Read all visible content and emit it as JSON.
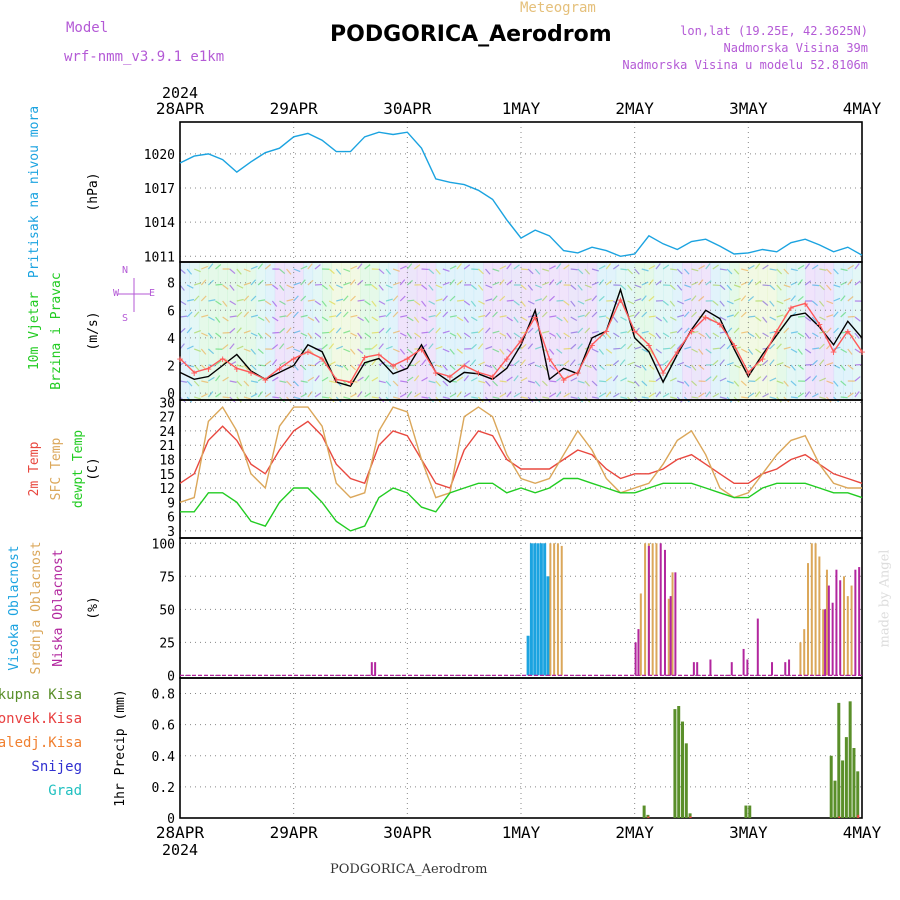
{
  "header": {
    "model_label": "Model",
    "model_name": "wrf-nmm_v3.9.1  e1km",
    "product": "Meteogram",
    "station": "PODGORICA_Aerodrom",
    "lonlat": "lon,lat (19.25E, 42.3625N)",
    "elevation": "Nadmorska Visina 39m",
    "model_elevation": "Nadmorska Visina u modelu 52.8106m",
    "footer_station": "PODGORICA_Aerodrom",
    "credit": "made by Angel"
  },
  "colors": {
    "pressure": "#1ba3e0",
    "t2m": "#e8483f",
    "sfc": "#dba75a",
    "dewpoint": "#22cc22",
    "windspeed": "#000000",
    "gust": "#ff5a5a",
    "high_cloud": "#1ba3e0",
    "mid_cloud": "#dba75a",
    "low_cloud": "#b2269e",
    "total_precip": "#5a8f2a",
    "convective": "#e84040",
    "freezing": "#f08030",
    "snow": "#3030d0",
    "hail": "#20c0c0",
    "model_text": "#b45ad6",
    "title_text": "#000000",
    "meteogram_text": "#e5c07b"
  },
  "chart_data": {
    "type": "line",
    "year_label": "2024",
    "x_labels": [
      "28APR",
      "29APR",
      "30APR",
      "1MAY",
      "2MAY",
      "3MAY",
      "4MAY"
    ],
    "x_range_hours": [
      0,
      144
    ],
    "panels": [
      {
        "id": "pressure",
        "labels": [
          "Pritisak na nivou mora"
        ],
        "unit": "(hPa)",
        "ylim": [
          1010.5,
          1022.8
        ],
        "yticks": [
          1011,
          1014,
          1017,
          1020
        ],
        "series": [
          {
            "key": "pressure",
            "x": [
              0,
              3,
              6,
              9,
              12,
              15,
              18,
              21,
              24,
              27,
              30,
              33,
              36,
              39,
              42,
              45,
              48,
              51,
              54,
              57,
              60,
              63,
              66,
              69,
              72,
              75,
              78,
              81,
              84,
              87,
              90,
              93,
              96,
              99,
              102,
              105,
              108,
              111,
              114,
              117,
              120,
              123,
              126,
              129,
              132,
              135,
              138,
              141,
              144
            ],
            "y": [
              1019.2,
              1019.8,
              1020.0,
              1019.5,
              1018.4,
              1019.3,
              1020.1,
              1020.5,
              1021.5,
              1021.8,
              1021.2,
              1020.2,
              1020.2,
              1021.5,
              1021.9,
              1021.7,
              1021.9,
              1020.5,
              1017.8,
              1017.5,
              1017.3,
              1016.8,
              1016.0,
              1014.2,
              1012.6,
              1013.3,
              1012.8,
              1011.5,
              1011.3,
              1011.8,
              1011.5,
              1011.0,
              1011.2,
              1012.8,
              1012.1,
              1011.6,
              1012.3,
              1012.5,
              1011.9,
              1011.2,
              1011.3,
              1011.6,
              1011.4,
              1012.2,
              1012.5,
              1012.0,
              1011.4,
              1011.8,
              1011.1
            ]
          }
        ]
      },
      {
        "id": "wind",
        "labels": [
          "10m Vjetar",
          "Brzina i Pravac"
        ],
        "unit": "(m/s)",
        "compass": [
          "N",
          "W",
          "E",
          "S"
        ],
        "ylim": [
          -0.5,
          9.5
        ],
        "yticks": [
          0,
          2,
          4,
          6,
          8
        ],
        "series": [
          {
            "key": "windspeed",
            "x": [
              0,
              3,
              6,
              9,
              12,
              15,
              18,
              21,
              24,
              27,
              30,
              33,
              36,
              39,
              42,
              45,
              48,
              51,
              54,
              57,
              60,
              63,
              66,
              69,
              72,
              75,
              78,
              81,
              84,
              87,
              90,
              93,
              96,
              99,
              102,
              105,
              108,
              111,
              114,
              117,
              120,
              123,
              126,
              129,
              132,
              135,
              138,
              141,
              144
            ],
            "y": [
              1.5,
              1.0,
              1.2,
              2.0,
              2.8,
              1.6,
              1.0,
              1.5,
              2.0,
              3.5,
              3.0,
              0.8,
              0.5,
              2.2,
              2.5,
              1.4,
              1.8,
              3.5,
              1.5,
              0.8,
              1.5,
              1.4,
              1.0,
              1.8,
              3.5,
              6.0,
              1.0,
              1.8,
              1.4,
              4.0,
              4.5,
              7.5,
              4.0,
              3.0,
              0.8,
              2.8,
              4.6,
              6.0,
              5.4,
              3.2,
              1.2,
              2.8,
              4.2,
              5.6,
              5.8,
              4.8,
              3.5,
              5.2,
              4.0
            ]
          },
          {
            "key": "gust",
            "x": [
              0,
              3,
              6,
              9,
              12,
              15,
              18,
              21,
              24,
              27,
              30,
              33,
              36,
              39,
              42,
              45,
              48,
              51,
              54,
              57,
              60,
              63,
              66,
              69,
              72,
              75,
              78,
              81,
              84,
              87,
              90,
              93,
              96,
              99,
              102,
              105,
              108,
              111,
              114,
              117,
              120,
              123,
              126,
              129,
              132,
              135,
              138,
              141,
              144
            ],
            "y": [
              2.5,
              1.5,
              1.8,
              2.5,
              1.8,
              1.5,
              1.0,
              1.8,
              2.5,
              3.0,
              2.5,
              1.0,
              0.8,
              2.6,
              2.8,
              2.0,
              2.5,
              3.2,
              1.5,
              1.2,
              2.0,
              1.5,
              1.2,
              2.5,
              3.8,
              5.5,
              2.5,
              1.0,
              1.5,
              3.5,
              4.5,
              6.8,
              4.5,
              3.5,
              1.5,
              3.0,
              4.5,
              5.5,
              5.0,
              3.5,
              1.5,
              2.5,
              4.5,
              6.2,
              6.5,
              5.0,
              3.0,
              4.5,
              3.0
            ]
          }
        ]
      },
      {
        "id": "temperature",
        "labels": [
          "2m Temp",
          "SFC Temp",
          "dewpt Temp"
        ],
        "unit": "(C)",
        "ylim": [
          1.5,
          30.5
        ],
        "yticks": [
          3,
          6,
          9,
          12,
          15,
          18,
          21,
          24,
          27,
          30
        ],
        "series": [
          {
            "key": "t2m",
            "x": [
              0,
              3,
              6,
              9,
              12,
              15,
              18,
              21,
              24,
              27,
              30,
              33,
              36,
              39,
              42,
              45,
              48,
              51,
              54,
              57,
              60,
              63,
              66,
              69,
              72,
              75,
              78,
              81,
              84,
              87,
              90,
              93,
              96,
              99,
              102,
              105,
              108,
              111,
              114,
              117,
              120,
              123,
              126,
              129,
              132,
              135,
              138,
              141,
              144
            ],
            "y": [
              13,
              15,
              22,
              25,
              22,
              17,
              15,
              20,
              24,
              26,
              23,
              17,
              14,
              13,
              21,
              24,
              23,
              18,
              13,
              12,
              20,
              24,
              23,
              18,
              16,
              16,
              16,
              18,
              20,
              19,
              16,
              14,
              15,
              15,
              16,
              18,
              19,
              17,
              15,
              13,
              13,
              15,
              16,
              18,
              19,
              17,
              15,
              14,
              13
            ]
          },
          {
            "key": "sfc",
            "x": [
              0,
              3,
              6,
              9,
              12,
              15,
              18,
              21,
              24,
              27,
              30,
              33,
              36,
              39,
              42,
              45,
              48,
              51,
              54,
              57,
              60,
              63,
              66,
              69,
              72,
              75,
              78,
              81,
              84,
              87,
              90,
              93,
              96,
              99,
              102,
              105,
              108,
              111,
              114,
              117,
              120,
              123,
              126,
              129,
              132,
              135,
              138,
              141,
              144
            ],
            "y": [
              9,
              10,
              26,
              29,
              24,
              15,
              12,
              25,
              29,
              29,
              25,
              13,
              10,
              11,
              24,
              29,
              28,
              18,
              10,
              11,
              27,
              29,
              27,
              19,
              14,
              13,
              14,
              19,
              24,
              20,
              14,
              11,
              12,
              13,
              17,
              22,
              24,
              19,
              12,
              10,
              11,
              15,
              19,
              22,
              23,
              17,
              13,
              12,
              12
            ]
          },
          {
            "key": "dewpoint",
            "x": [
              0,
              3,
              6,
              9,
              12,
              15,
              18,
              21,
              24,
              27,
              30,
              33,
              36,
              39,
              42,
              45,
              48,
              51,
              54,
              57,
              60,
              63,
              66,
              69,
              72,
              75,
              78,
              81,
              84,
              87,
              90,
              93,
              96,
              99,
              102,
              105,
              108,
              111,
              114,
              117,
              120,
              123,
              126,
              129,
              132,
              135,
              138,
              141,
              144
            ],
            "y": [
              7,
              7,
              11,
              11,
              9,
              5,
              4,
              9,
              12,
              12,
              9,
              5,
              3,
              4,
              10,
              12,
              11,
              8,
              7,
              11,
              12,
              13,
              13,
              11,
              12,
              11,
              12,
              14,
              14,
              13,
              12,
              11,
              11,
              12,
              13,
              13,
              13,
              12,
              11,
              10,
              10,
              12,
              13,
              13,
              13,
              12,
              11,
              11,
              10
            ]
          }
        ]
      },
      {
        "id": "cloud",
        "labels": [
          "Visoka Oblacnost",
          "Srednja Oblacnost",
          "Niska Oblacnost"
        ],
        "unit": "(%)",
        "ylim": [
          -2,
          104
        ],
        "yticks": [
          0,
          25,
          50,
          75,
          100
        ],
        "bars": [
          {
            "key": "high_cloud",
            "x": [
              73.5,
              74.2,
              74.9,
              75.6,
              76.3,
              77.0,
              77.7
            ],
            "y": [
              30,
              100,
              100,
              100,
              100,
              100,
              75
            ]
          },
          {
            "key": "mid_cloud",
            "x": [
              78.2,
              79.0,
              79.8,
              80.6,
              97.3,
              98.2,
              99.0,
              99.8,
              100.6,
              103.2,
              104.0,
              131.0,
              131.8,
              132.6,
              133.4,
              134.2,
              135.0,
              135.8,
              136.6,
              140.2,
              141.0,
              141.8
            ],
            "y": [
              100,
              100,
              100,
              98,
              62,
              100,
              100,
              100,
              100,
              58,
              78,
              25,
              35,
              85,
              100,
              100,
              90,
              50,
              80,
              75,
              60,
              68
            ]
          },
          {
            "key": "low_cloud",
            "x": [
              40.5,
              41.2,
              96.2,
              96.8,
              99.0,
              101.5,
              102.4,
              103.6,
              104.6,
              108.5,
              109.2,
              112.0,
              116.5,
              119.0,
              119.8,
              122.0,
              125.0,
              127.8,
              128.6,
              136.2,
              137.0,
              137.8,
              138.6,
              139.4,
              142.6,
              143.4
            ],
            "y": [
              10,
              10,
              25,
              35,
              98,
              100,
              95,
              60,
              78,
              10,
              10,
              12,
              10,
              20,
              12,
              43,
              10,
              10,
              12,
              50,
              68,
              55,
              80,
              72,
              80,
              82
            ]
          }
        ]
      },
      {
        "id": "precip",
        "labels": [
          "Ukupna Kisa",
          "Konvek.Kisa",
          "Zaledj.Kisa",
          "Snijeg",
          "Grad"
        ],
        "legend_keys": [
          "total_precip",
          "convective",
          "freezing",
          "snow",
          "hail"
        ],
        "unit": "1hr Precip (mm)",
        "ylim": [
          0,
          0.9
        ],
        "yticks": [
          0,
          0.2,
          0.4,
          0.6,
          0.8
        ],
        "bars": [
          {
            "key": "total_precip",
            "x": [
              98.0,
              98.8,
              104.5,
              105.3,
              106.1,
              106.9,
              107.7,
              119.5,
              120.3,
              137.5,
              138.3,
              139.1,
              139.9,
              140.7,
              141.5,
              142.3,
              143.1
            ],
            "y": [
              0.08,
              0.02,
              0.7,
              0.72,
              0.62,
              0.48,
              0.03,
              0.08,
              0.08,
              0.4,
              0.24,
              0.74,
              0.37,
              0.52,
              0.75,
              0.45,
              0.3
            ]
          },
          {
            "key": "convective",
            "x": [
              98.9,
              107.8,
              139.2,
              143.2
            ],
            "y": [
              0.01,
              0.01,
              0.01,
              0.02
            ]
          }
        ]
      }
    ]
  }
}
